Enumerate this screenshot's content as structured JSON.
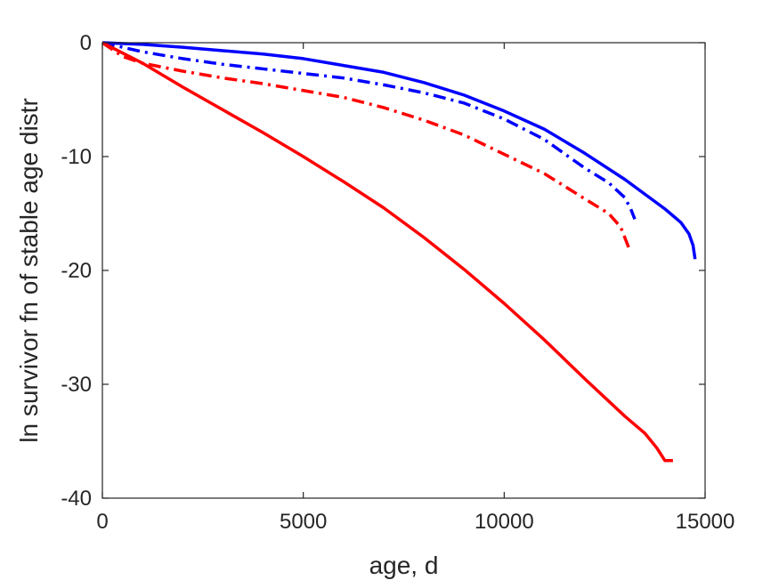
{
  "chart_data": {
    "type": "line",
    "xlabel": "age, d",
    "ylabel": "ln survivor fn of stable age distr",
    "xlim": [
      0,
      15000
    ],
    "ylim": [
      -40,
      0
    ],
    "xticks": [
      0,
      5000,
      10000,
      15000
    ],
    "xtick_labels": [
      "0",
      "5000",
      "10000",
      "15000"
    ],
    "yticks": [
      -40,
      -30,
      -20,
      -10,
      0
    ],
    "ytick_labels": [
      "-40",
      "-30",
      "-20",
      "-10",
      "0"
    ],
    "grid": false,
    "legend": "none",
    "series": [
      {
        "color": "#0000ff",
        "style": "solid",
        "x": [
          0,
          1000,
          2000,
          3000,
          4000,
          5000,
          6000,
          7000,
          8000,
          9000,
          10000,
          11000,
          12000,
          13000,
          14000,
          14400,
          14600,
          14700,
          14750
        ],
        "y": [
          0,
          -0.15,
          -0.4,
          -0.7,
          -1.0,
          -1.4,
          -2.0,
          -2.6,
          -3.5,
          -4.6,
          -6.0,
          -7.6,
          -9.7,
          -12.0,
          -14.6,
          -15.8,
          -16.8,
          -17.8,
          -19.0
        ]
      },
      {
        "color": "#0000ff",
        "style": "dashdot",
        "x": [
          0,
          1000,
          2000,
          3000,
          4000,
          5000,
          6000,
          7000,
          8000,
          9000,
          10000,
          11000,
          12000,
          12600,
          13000,
          13150,
          13250
        ],
        "y": [
          0,
          -0.8,
          -1.4,
          -1.9,
          -2.3,
          -2.7,
          -3.1,
          -3.7,
          -4.4,
          -5.3,
          -6.7,
          -8.5,
          -11.0,
          -12.3,
          -13.6,
          -14.6,
          -15.5
        ]
      },
      {
        "color": "#ff0000",
        "style": "dashdot",
        "x": [
          0,
          500,
          1000,
          2000,
          3000,
          4000,
          5000,
          6000,
          7000,
          8000,
          9000,
          10000,
          11000,
          12000,
          12600,
          12900,
          13100
        ],
        "y": [
          0,
          -1.2,
          -1.8,
          -2.5,
          -3.1,
          -3.6,
          -4.2,
          -4.8,
          -5.7,
          -6.8,
          -8.1,
          -9.8,
          -11.5,
          -13.7,
          -15.0,
          -16.2,
          -18.0
        ]
      },
      {
        "color": "#ff0000",
        "style": "solid",
        "x": [
          0,
          1000,
          2000,
          3000,
          4000,
          5000,
          6000,
          7000,
          8000,
          9000,
          10000,
          11000,
          12000,
          13000,
          13500,
          13800,
          14000,
          14200
        ],
        "y": [
          0,
          -1.8,
          -3.9,
          -5.9,
          -7.9,
          -10.0,
          -12.2,
          -14.5,
          -17.1,
          -19.9,
          -22.9,
          -26.1,
          -29.5,
          -32.8,
          -34.3,
          -35.6,
          -36.7,
          -36.7
        ]
      }
    ]
  }
}
